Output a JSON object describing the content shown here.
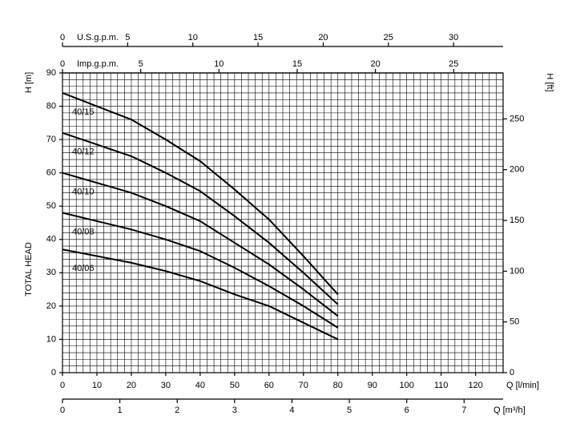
{
  "chart_data": {
    "type": "line",
    "x_label": "Q [l/min]",
    "y_label": "H [m]",
    "y_title": "TOTAL HEAD",
    "y2_label": "H [ft]",
    "x": [
      0,
      20,
      30,
      40,
      50,
      60,
      70,
      80
    ],
    "xlim": [
      0,
      128
    ],
    "xticks": [
      0,
      10,
      20,
      30,
      40,
      50,
      60,
      70,
      80,
      90,
      100,
      110,
      120
    ],
    "ylim": [
      0,
      90
    ],
    "yticks": [
      0,
      10,
      20,
      30,
      40,
      50,
      60,
      70,
      80,
      90
    ],
    "y2lim": [
      0,
      295.3
    ],
    "y2ticks": [
      0,
      50,
      100,
      150,
      200,
      250
    ],
    "grid": true,
    "series": [
      {
        "name": "40/15",
        "color": "#000000",
        "values": [
          84,
          76,
          70,
          63.5,
          55,
          46,
          35,
          23.5
        ]
      },
      {
        "name": "40/12",
        "color": "#000000",
        "values": [
          72,
          65,
          60,
          54.5,
          47,
          39,
          30,
          20.5
        ]
      },
      {
        "name": "40/10",
        "color": "#000000",
        "values": [
          60,
          54,
          50,
          45.5,
          39,
          32.5,
          25,
          17
        ]
      },
      {
        "name": "40/08",
        "color": "#000000",
        "values": [
          48,
          43,
          40,
          36.5,
          31.5,
          26,
          20,
          13.5
        ]
      },
      {
        "name": "40/06",
        "color": "#000000",
        "values": [
          37,
          33,
          30.5,
          27.5,
          23.5,
          20,
          15,
          10
        ]
      }
    ],
    "x_axes": [
      {
        "label": "U.S.g.p.m.",
        "lim": [
          0,
          33.8
        ],
        "ticks": [
          0,
          5,
          10,
          15,
          20,
          25,
          30
        ]
      },
      {
        "label": "Imp.g.p.m.",
        "lim": [
          0,
          28.16
        ],
        "ticks": [
          0,
          5,
          10,
          15,
          20,
          25
        ]
      },
      {
        "label": "Q [m³/h]",
        "lim": [
          0,
          7.68
        ],
        "ticks": [
          0,
          1,
          2,
          3,
          4,
          5,
          6,
          7
        ]
      }
    ]
  }
}
